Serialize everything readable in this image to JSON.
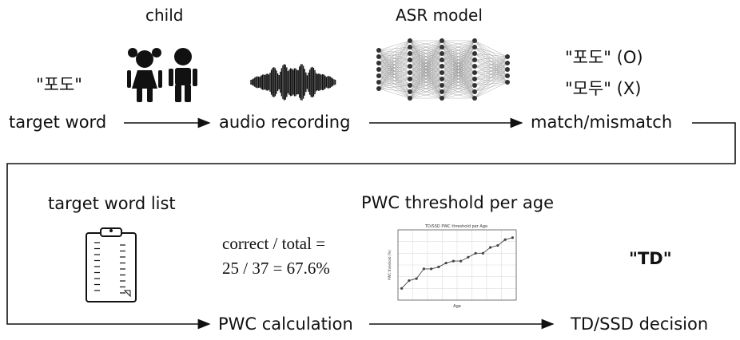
{
  "top_labels": {
    "child": "child",
    "asr_model": "ASR model"
  },
  "row1": {
    "target_word_example": "\"포도\"",
    "target_word": "target word",
    "audio_recording": "audio recording",
    "match_result_correct": "\"포도\" (O)",
    "match_result_wrong": "\"모두\" (X)",
    "match_mismatch": "match/mismatch"
  },
  "row2": {
    "target_word_list": "target word list",
    "pwc_threshold_title": "PWC threshold per age",
    "formula_line1": "correct / total =",
    "formula_line2": "25 / 37 = 67.6%",
    "decision_value": "\"TD\"",
    "pwc_calculation": "PWC calculation",
    "td_ssd_decision": "TD/SSD decision"
  },
  "chart_data": {
    "type": "line",
    "title": "TD/SSD PWC threshold per Age",
    "xlabel": "Age",
    "ylabel": "PWC threshold (%)",
    "x": [
      1,
      2,
      3,
      4,
      5,
      6,
      7,
      8,
      9,
      10,
      11,
      12,
      13,
      14,
      15,
      16
    ],
    "values": [
      56,
      60,
      61,
      66,
      66,
      67,
      69,
      70,
      70,
      72,
      74,
      74,
      77,
      78,
      81,
      82
    ],
    "grid": true
  }
}
